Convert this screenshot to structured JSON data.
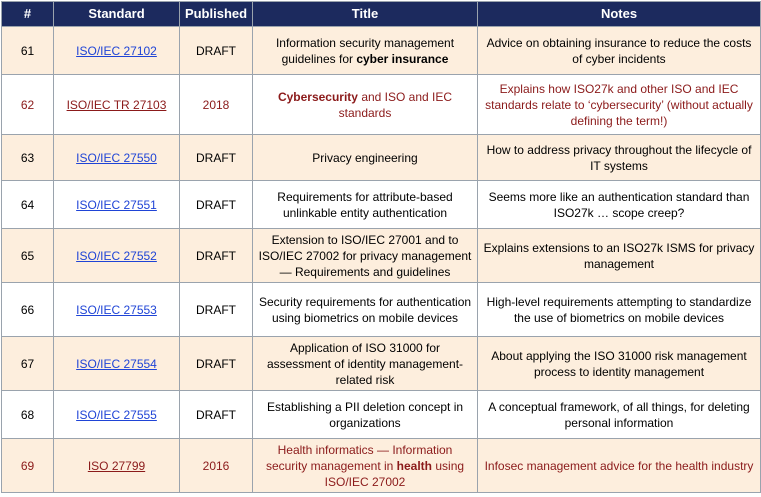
{
  "headers": [
    "#",
    "Standard",
    "Published",
    "Title",
    "Notes"
  ],
  "rows": [
    {
      "num": "61",
      "standard": "ISO/IEC 27102",
      "published": "DRAFT",
      "title": {
        "pre": "Information security management guidelines for ",
        "bold": "cyber insurance",
        "post": ""
      },
      "notes": "Advice on obtaining insurance to reduce the costs of cyber incidents",
      "highlight": false
    },
    {
      "num": "62",
      "standard": "ISO/IEC TR 27103",
      "published": "2018",
      "title": {
        "pre": "",
        "bold": "Cybersecurity",
        "post": " and ISO and IEC standards"
      },
      "notes": "Explains how ISO27k and other ISO and IEC standards relate to ‘cybersecurity’ (without actually defining the term!)",
      "highlight": true
    },
    {
      "num": "63",
      "standard": "ISO/IEC 27550",
      "published": "DRAFT",
      "title": {
        "pre": "Privacy engineering",
        "bold": "",
        "post": ""
      },
      "notes": "How to address privacy throughout the lifecycle of IT systems",
      "highlight": false
    },
    {
      "num": "64",
      "standard": "ISO/IEC 27551",
      "published": "DRAFT",
      "title": {
        "pre": "Requirements for attribute-based unlinkable entity authentication",
        "bold": "",
        "post": ""
      },
      "notes": "Seems more like an authentication standard than ISO27k … scope creep?",
      "highlight": false
    },
    {
      "num": "65",
      "standard": "ISO/IEC 27552",
      "published": "DRAFT",
      "title": {
        "pre": "Extension to ISO/IEC 27001 and to ISO/IEC 27002 for privacy management — Requirements and guidelines",
        "bold": "",
        "post": ""
      },
      "notes": "Explains extensions to an ISO27k ISMS for privacy management",
      "highlight": false
    },
    {
      "num": "66",
      "standard": "ISO/IEC 27553",
      "published": "DRAFT",
      "title": {
        "pre": "Security requirements for authentication using biometrics on mobile devices",
        "bold": "",
        "post": ""
      },
      "notes": "High-level requirements attempting to standardize the use of biometrics on mobile devices",
      "highlight": false
    },
    {
      "num": "67",
      "standard": "ISO/IEC 27554",
      "published": "DRAFT",
      "title": {
        "pre": "Application of ISO 31000 for assessment of identity management-related risk",
        "bold": "",
        "post": ""
      },
      "notes": "About applying the ISO 31000 risk management process to identity management",
      "highlight": false
    },
    {
      "num": "68",
      "standard": "ISO/IEC 27555",
      "published": "DRAFT",
      "title": {
        "pre": "Establishing a PII deletion concept in organizations",
        "bold": "",
        "post": ""
      },
      "notes": "A conceptual framework, of all things, for deleting personal information",
      "highlight": false
    },
    {
      "num": "69",
      "standard": "ISO 27799",
      "published": "2016",
      "title": {
        "pre": "Health informatics — Information security management in ",
        "bold": "health",
        "post": " using ISO/IEC 27002"
      },
      "notes": "Infosec management advice for the health industry",
      "highlight": true
    }
  ]
}
